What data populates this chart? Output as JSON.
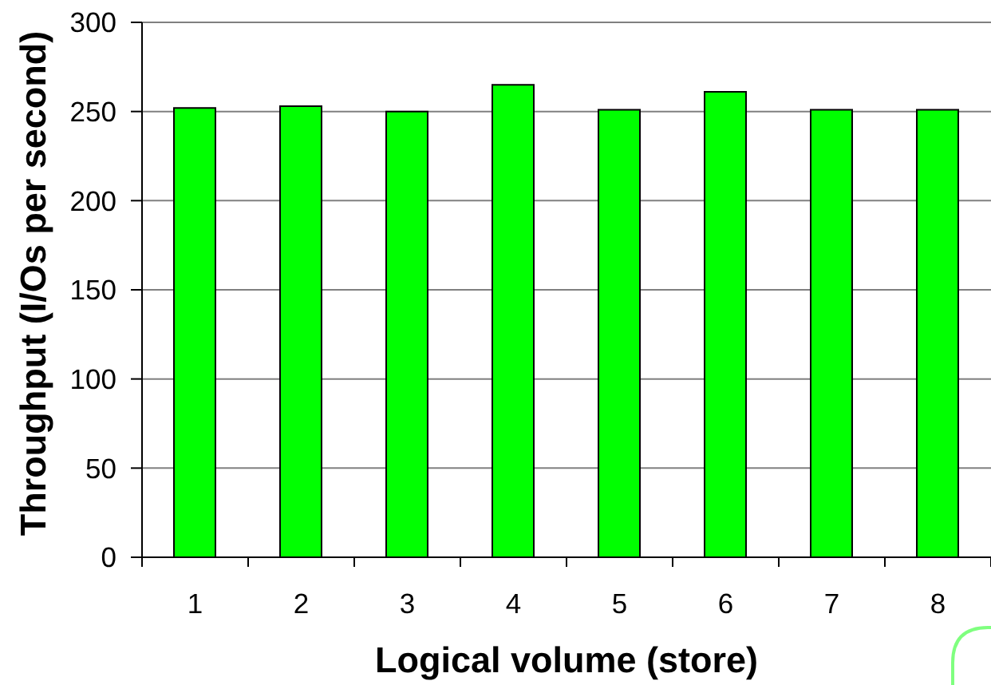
{
  "chart_data": {
    "type": "bar",
    "xlabel": "Logical volume (store)",
    "ylabel": "Throughput (I/Os per second)",
    "categories": [
      "1",
      "2",
      "3",
      "4",
      "5",
      "6",
      "7",
      "8"
    ],
    "values": [
      252,
      253,
      250,
      265,
      251,
      261,
      251,
      251
    ],
    "color": "#00ff00",
    "ylim": [
      0,
      300
    ],
    "yticks": [
      0,
      50,
      100,
      150,
      200,
      250,
      300
    ],
    "grid": "y"
  }
}
